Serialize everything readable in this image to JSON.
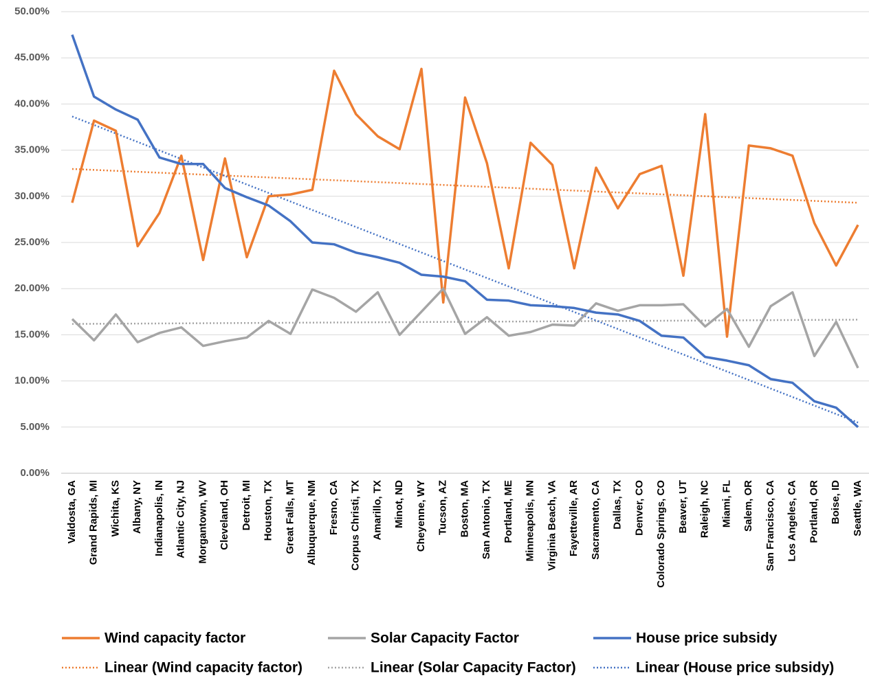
{
  "chart_data": {
    "type": "line",
    "categories": [
      "Valdosta, GA",
      "Grand Rapids, MI",
      "Wichita, KS",
      "Albany, NY",
      "Indianapolis, IN",
      "Atlantic City, NJ",
      "Morgantown, WV",
      "Cleveland, OH",
      "Detroit, MI",
      "Houston, TX",
      "Great Falls, MT",
      "Albuquerque, NM",
      "Fresno, CA",
      "Corpus Christi, TX",
      "Amarillo, TX",
      "Minot, ND",
      "Cheyenne, WY",
      "Tucson, AZ",
      "Boston, MA",
      "San Antonio, TX",
      "Portland, ME",
      "Minneapolis, MN",
      "Virginia Beach, VA",
      "Fayetteville, AR",
      "Sacramento, CA",
      "Dallas, TX",
      "Denver, CO",
      "Colorado Springs, CO",
      "Beaver, UT",
      "Raleigh, NC",
      "Miami, FL",
      "Salem, OR",
      "San Francisco, CA",
      "Los Angeles, CA",
      "Portland, OR",
      "Boise, ID",
      "Seattle, WA"
    ],
    "series": [
      {
        "name": "Wind capacity factor",
        "color": "#ed7d31",
        "trendline": "Linear (Wind capacity factor)",
        "values": [
          29.3,
          38.2,
          37.1,
          24.6,
          28.2,
          34.4,
          23.1,
          34.1,
          23.4,
          30.0,
          30.2,
          30.7,
          43.6,
          38.9,
          36.5,
          35.1,
          43.8,
          18.5,
          40.7,
          33.6,
          22.2,
          35.8,
          33.4,
          22.2,
          33.1,
          28.7,
          32.4,
          33.3,
          21.4,
          38.9,
          14.8,
          35.5,
          35.2,
          34.4,
          27.1,
          22.5,
          26.9
        ]
      },
      {
        "name": "Solar Capacity Factor",
        "color": "#a5a5a5",
        "trendline": "Linear (Solar Capacity Factor)",
        "values": [
          16.7,
          14.4,
          17.2,
          14.2,
          15.2,
          15.8,
          13.8,
          14.3,
          14.7,
          16.5,
          15.1,
          19.9,
          19.0,
          17.5,
          19.6,
          15.0,
          17.5,
          20.0,
          15.1,
          16.9,
          14.9,
          15.3,
          16.1,
          16.0,
          18.4,
          17.6,
          18.2,
          18.2,
          18.3,
          15.9,
          17.8,
          13.7,
          18.1,
          19.6,
          12.7,
          16.4,
          11.4
        ]
      },
      {
        "name": "House price subsidy",
        "color": "#4472c4",
        "trendline": "Linear (House price subsidy)",
        "values": [
          47.5,
          40.8,
          39.4,
          38.3,
          34.2,
          33.5,
          33.5,
          30.9,
          29.9,
          29.0,
          27.3,
          25.0,
          24.8,
          23.9,
          23.4,
          22.8,
          21.5,
          21.3,
          20.8,
          18.8,
          18.7,
          18.2,
          18.1,
          17.9,
          17.4,
          17.2,
          16.5,
          14.9,
          14.7,
          12.6,
          12.2,
          11.7,
          10.2,
          9.8,
          7.8,
          7.1,
          5.0
        ]
      }
    ],
    "ylim": [
      0,
      50
    ],
    "yticks": [
      {
        "value": 0,
        "label": "0.00%"
      },
      {
        "value": 5,
        "label": "5.00%"
      },
      {
        "value": 10,
        "label": "10.00%"
      },
      {
        "value": 15,
        "label": "15.00%"
      },
      {
        "value": 20,
        "label": "20.00%"
      },
      {
        "value": 25,
        "label": "25.00%"
      },
      {
        "value": 30,
        "label": "30.00%"
      },
      {
        "value": 35,
        "label": "35.00%"
      },
      {
        "value": 40,
        "label": "40.00%"
      },
      {
        "value": 45,
        "label": "45.00%"
      },
      {
        "value": 50,
        "label": "50.00%"
      }
    ],
    "grid": true,
    "legend": "bottom"
  }
}
